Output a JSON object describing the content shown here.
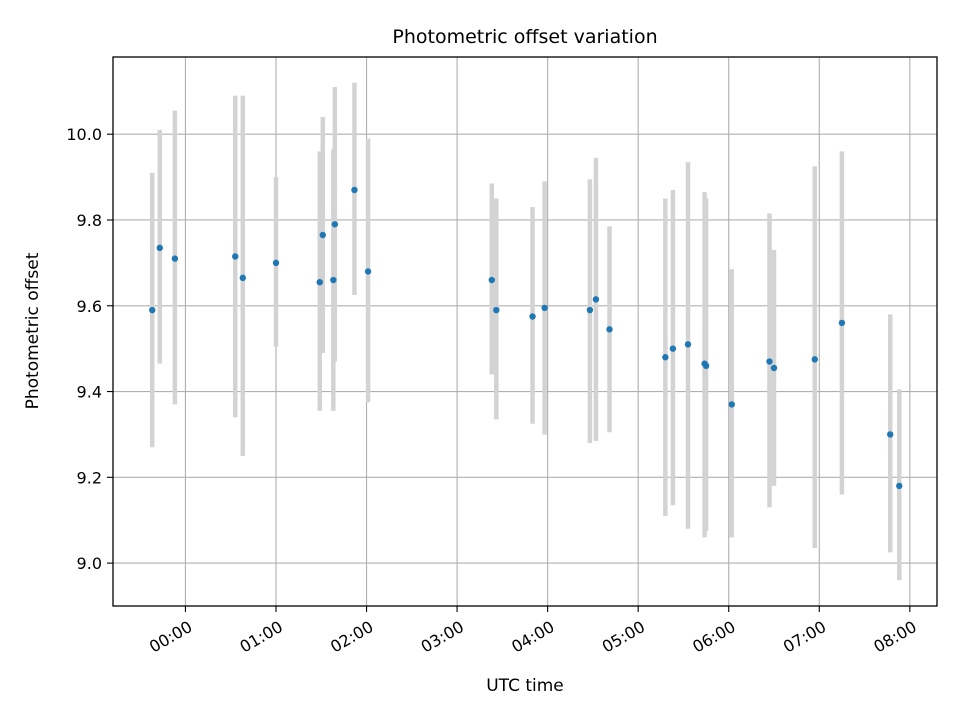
{
  "chart_data": {
    "type": "scatter",
    "title": "Photometric offset variation",
    "xlabel": "UTC time",
    "ylabel": "Photometric offset",
    "xlim": [
      "23:12",
      "08:18"
    ],
    "ylim": [
      8.9,
      10.18
    ],
    "x_ticks": [
      "00:00",
      "01:00",
      "02:00",
      "03:00",
      "04:00",
      "05:00",
      "06:00",
      "07:00",
      "08:00"
    ],
    "y_ticks": [
      "9.0",
      "9.2",
      "9.4",
      "9.6",
      "9.8",
      "10.0"
    ],
    "grid": true,
    "colors": {
      "point": "#1f77b4",
      "errorbar": "#d3d3d3",
      "grid": "#b0b0b0"
    },
    "series": [
      {
        "points": [
          {
            "x": "23:38",
            "y": 9.59,
            "low": 9.27,
            "high": 9.91
          },
          {
            "x": "23:43",
            "y": 9.735,
            "low": 9.465,
            "high": 10.01
          },
          {
            "x": "23:53",
            "y": 9.71,
            "low": 9.37,
            "high": 10.055
          },
          {
            "x": "00:33",
            "y": 9.715,
            "low": 9.34,
            "high": 10.09
          },
          {
            "x": "00:38",
            "y": 9.665,
            "low": 9.25,
            "high": 10.09
          },
          {
            "x": "01:00",
            "y": 9.7,
            "low": 9.505,
            "high": 9.9
          },
          {
            "x": "01:29",
            "y": 9.655,
            "low": 9.355,
            "high": 9.96
          },
          {
            "x": "01:31",
            "y": 9.765,
            "low": 9.49,
            "high": 10.04
          },
          {
            "x": "01:38",
            "y": 9.66,
            "low": 9.355,
            "high": 9.965
          },
          {
            "x": "01:39",
            "y": 9.79,
            "low": 9.47,
            "high": 10.11
          },
          {
            "x": "01:52",
            "y": 9.87,
            "low": 9.625,
            "high": 10.12
          },
          {
            "x": "02:01",
            "y": 9.68,
            "low": 9.375,
            "high": 9.99
          },
          {
            "x": "03:23",
            "y": 9.66,
            "low": 9.44,
            "high": 9.885
          },
          {
            "x": "03:26",
            "y": 9.59,
            "low": 9.335,
            "high": 9.85
          },
          {
            "x": "03:50",
            "y": 9.575,
            "low": 9.325,
            "high": 9.83
          },
          {
            "x": "03:58",
            "y": 9.595,
            "low": 9.3,
            "high": 9.89
          },
          {
            "x": "04:28",
            "y": 9.59,
            "low": 9.28,
            "high": 9.895
          },
          {
            "x": "04:32",
            "y": 9.615,
            "low": 9.285,
            "high": 9.945
          },
          {
            "x": "04:41",
            "y": 9.545,
            "low": 9.305,
            "high": 9.785
          },
          {
            "x": "05:18",
            "y": 9.48,
            "low": 9.11,
            "high": 9.85
          },
          {
            "x": "05:23",
            "y": 9.5,
            "low": 9.135,
            "high": 9.87
          },
          {
            "x": "05:33",
            "y": 9.51,
            "low": 9.08,
            "high": 9.935
          },
          {
            "x": "05:44",
            "y": 9.465,
            "low": 9.06,
            "high": 9.865
          },
          {
            "x": "05:45",
            "y": 9.46,
            "low": 9.075,
            "high": 9.85
          },
          {
            "x": "06:02",
            "y": 9.37,
            "low": 9.06,
            "high": 9.685
          },
          {
            "x": "06:27",
            "y": 9.47,
            "low": 9.13,
            "high": 9.815
          },
          {
            "x": "06:30",
            "y": 9.455,
            "low": 9.18,
            "high": 9.73
          },
          {
            "x": "06:57",
            "y": 9.475,
            "low": 9.035,
            "high": 9.925
          },
          {
            "x": "07:15",
            "y": 9.56,
            "low": 9.16,
            "high": 9.96
          },
          {
            "x": "07:47",
            "y": 9.3,
            "low": 9.025,
            "high": 9.58
          },
          {
            "x": "07:53",
            "y": 9.18,
            "low": 8.96,
            "high": 9.405
          }
        ]
      }
    ]
  }
}
